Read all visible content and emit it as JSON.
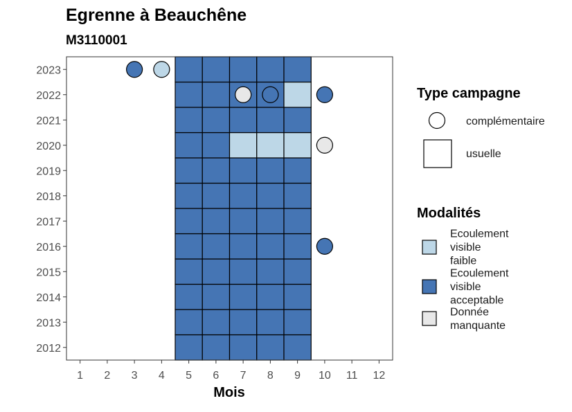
{
  "chart_data": {
    "type": "heatmap",
    "title": "Egrenne à Beauchêne",
    "subtitle": "M3110001",
    "xlabel": "Mois",
    "ylabel": "",
    "x_ticks": [
      "1",
      "2",
      "3",
      "4",
      "5",
      "6",
      "7",
      "8",
      "9",
      "10",
      "11",
      "12"
    ],
    "y_ticks": [
      "2012",
      "2013",
      "2014",
      "2015",
      "2016",
      "2017",
      "2018",
      "2019",
      "2020",
      "2021",
      "2022",
      "2023"
    ],
    "xlim": [
      0.5,
      12.5
    ],
    "ylim": [
      2011.5,
      2023.5
    ],
    "grid": false,
    "legend_position": "right",
    "colors": {
      "Ecoulement visible faible": "#bdd7e7",
      "Ecoulement visible acceptable": "#4575b4",
      "Donnée manquante": "#e8e8e8"
    },
    "legends": {
      "campaign_type": {
        "title": "Type campagne",
        "items": [
          {
            "label": "complémentaire",
            "shape": "circle"
          },
          {
            "label": "usuelle",
            "shape": "square"
          }
        ]
      },
      "modalites": {
        "title": "Modalités",
        "items": [
          {
            "key": "Ecoulement visible faible",
            "lines": [
              "Ecoulement",
              "visible",
              "faible"
            ]
          },
          {
            "key": "Ecoulement visible acceptable",
            "lines": [
              "Ecoulement",
              "visible",
              "acceptable"
            ]
          },
          {
            "key": "Donnée manquante",
            "lines": [
              "Donnée",
              "manquante"
            ]
          }
        ]
      }
    },
    "points": [
      {
        "x": 5,
        "y": 2012,
        "modalite": "Ecoulement visible acceptable",
        "type": "usuelle"
      },
      {
        "x": 6,
        "y": 2012,
        "modalite": "Ecoulement visible acceptable",
        "type": "usuelle"
      },
      {
        "x": 7,
        "y": 2012,
        "modalite": "Ecoulement visible acceptable",
        "type": "usuelle"
      },
      {
        "x": 8,
        "y": 2012,
        "modalite": "Ecoulement visible acceptable",
        "type": "usuelle"
      },
      {
        "x": 9,
        "y": 2012,
        "modalite": "Ecoulement visible acceptable",
        "type": "usuelle"
      },
      {
        "x": 5,
        "y": 2013,
        "modalite": "Ecoulement visible acceptable",
        "type": "usuelle"
      },
      {
        "x": 6,
        "y": 2013,
        "modalite": "Ecoulement visible acceptable",
        "type": "usuelle"
      },
      {
        "x": 7,
        "y": 2013,
        "modalite": "Ecoulement visible acceptable",
        "type": "usuelle"
      },
      {
        "x": 8,
        "y": 2013,
        "modalite": "Ecoulement visible acceptable",
        "type": "usuelle"
      },
      {
        "x": 9,
        "y": 2013,
        "modalite": "Ecoulement visible acceptable",
        "type": "usuelle"
      },
      {
        "x": 5,
        "y": 2014,
        "modalite": "Ecoulement visible acceptable",
        "type": "usuelle"
      },
      {
        "x": 6,
        "y": 2014,
        "modalite": "Ecoulement visible acceptable",
        "type": "usuelle"
      },
      {
        "x": 7,
        "y": 2014,
        "modalite": "Ecoulement visible acceptable",
        "type": "usuelle"
      },
      {
        "x": 8,
        "y": 2014,
        "modalite": "Ecoulement visible acceptable",
        "type": "usuelle"
      },
      {
        "x": 9,
        "y": 2014,
        "modalite": "Ecoulement visible acceptable",
        "type": "usuelle"
      },
      {
        "x": 5,
        "y": 2015,
        "modalite": "Ecoulement visible acceptable",
        "type": "usuelle"
      },
      {
        "x": 6,
        "y": 2015,
        "modalite": "Ecoulement visible acceptable",
        "type": "usuelle"
      },
      {
        "x": 7,
        "y": 2015,
        "modalite": "Ecoulement visible acceptable",
        "type": "usuelle"
      },
      {
        "x": 8,
        "y": 2015,
        "modalite": "Ecoulement visible acceptable",
        "type": "usuelle"
      },
      {
        "x": 9,
        "y": 2015,
        "modalite": "Ecoulement visible acceptable",
        "type": "usuelle"
      },
      {
        "x": 5,
        "y": 2016,
        "modalite": "Ecoulement visible acceptable",
        "type": "usuelle"
      },
      {
        "x": 6,
        "y": 2016,
        "modalite": "Ecoulement visible acceptable",
        "type": "usuelle"
      },
      {
        "x": 7,
        "y": 2016,
        "modalite": "Ecoulement visible acceptable",
        "type": "usuelle"
      },
      {
        "x": 8,
        "y": 2016,
        "modalite": "Ecoulement visible acceptable",
        "type": "usuelle"
      },
      {
        "x": 9,
        "y": 2016,
        "modalite": "Ecoulement visible acceptable",
        "type": "usuelle"
      },
      {
        "x": 10,
        "y": 2016,
        "modalite": "Ecoulement visible acceptable",
        "type": "complémentaire"
      },
      {
        "x": 5,
        "y": 2017,
        "modalite": "Ecoulement visible acceptable",
        "type": "usuelle"
      },
      {
        "x": 6,
        "y": 2017,
        "modalite": "Ecoulement visible acceptable",
        "type": "usuelle"
      },
      {
        "x": 7,
        "y": 2017,
        "modalite": "Ecoulement visible acceptable",
        "type": "usuelle"
      },
      {
        "x": 8,
        "y": 2017,
        "modalite": "Ecoulement visible acceptable",
        "type": "usuelle"
      },
      {
        "x": 9,
        "y": 2017,
        "modalite": "Ecoulement visible acceptable",
        "type": "usuelle"
      },
      {
        "x": 5,
        "y": 2018,
        "modalite": "Ecoulement visible acceptable",
        "type": "usuelle"
      },
      {
        "x": 6,
        "y": 2018,
        "modalite": "Ecoulement visible acceptable",
        "type": "usuelle"
      },
      {
        "x": 7,
        "y": 2018,
        "modalite": "Ecoulement visible acceptable",
        "type": "usuelle"
      },
      {
        "x": 8,
        "y": 2018,
        "modalite": "Ecoulement visible acceptable",
        "type": "usuelle"
      },
      {
        "x": 9,
        "y": 2018,
        "modalite": "Ecoulement visible acceptable",
        "type": "usuelle"
      },
      {
        "x": 5,
        "y": 2019,
        "modalite": "Ecoulement visible acceptable",
        "type": "usuelle"
      },
      {
        "x": 6,
        "y": 2019,
        "modalite": "Ecoulement visible acceptable",
        "type": "usuelle"
      },
      {
        "x": 7,
        "y": 2019,
        "modalite": "Ecoulement visible acceptable",
        "type": "usuelle"
      },
      {
        "x": 8,
        "y": 2019,
        "modalite": "Ecoulement visible acceptable",
        "type": "usuelle"
      },
      {
        "x": 9,
        "y": 2019,
        "modalite": "Ecoulement visible acceptable",
        "type": "usuelle"
      },
      {
        "x": 5,
        "y": 2020,
        "modalite": "Ecoulement visible acceptable",
        "type": "usuelle"
      },
      {
        "x": 6,
        "y": 2020,
        "modalite": "Ecoulement visible acceptable",
        "type": "usuelle"
      },
      {
        "x": 7,
        "y": 2020,
        "modalite": "Ecoulement visible faible",
        "type": "usuelle"
      },
      {
        "x": 8,
        "y": 2020,
        "modalite": "Ecoulement visible faible",
        "type": "usuelle"
      },
      {
        "x": 9,
        "y": 2020,
        "modalite": "Ecoulement visible faible",
        "type": "usuelle"
      },
      {
        "x": 10,
        "y": 2020,
        "modalite": "Donnée manquante",
        "type": "complémentaire"
      },
      {
        "x": 5,
        "y": 2021,
        "modalite": "Ecoulement visible acceptable",
        "type": "usuelle"
      },
      {
        "x": 6,
        "y": 2021,
        "modalite": "Ecoulement visible acceptable",
        "type": "usuelle"
      },
      {
        "x": 7,
        "y": 2021,
        "modalite": "Ecoulement visible acceptable",
        "type": "usuelle"
      },
      {
        "x": 8,
        "y": 2021,
        "modalite": "Ecoulement visible acceptable",
        "type": "usuelle"
      },
      {
        "x": 9,
        "y": 2021,
        "modalite": "Ecoulement visible acceptable",
        "type": "usuelle"
      },
      {
        "x": 5,
        "y": 2022,
        "modalite": "Ecoulement visible acceptable",
        "type": "usuelle"
      },
      {
        "x": 6,
        "y": 2022,
        "modalite": "Ecoulement visible acceptable",
        "type": "usuelle"
      },
      {
        "x": 7,
        "y": 2022,
        "modalite": "Ecoulement visible acceptable",
        "type": "usuelle"
      },
      {
        "x": 8,
        "y": 2022,
        "modalite": "Ecoulement visible acceptable",
        "type": "usuelle"
      },
      {
        "x": 9,
        "y": 2022,
        "modalite": "Ecoulement visible faible",
        "type": "usuelle"
      },
      {
        "x": 7,
        "y": 2022,
        "modalite": "Donnée manquante",
        "type": "complémentaire"
      },
      {
        "x": 8,
        "y": 2022,
        "modalite": "Ecoulement visible acceptable",
        "type": "complémentaire"
      },
      {
        "x": 10,
        "y": 2022,
        "modalite": "Ecoulement visible acceptable",
        "type": "complémentaire"
      },
      {
        "x": 5,
        "y": 2023,
        "modalite": "Ecoulement visible acceptable",
        "type": "usuelle"
      },
      {
        "x": 6,
        "y": 2023,
        "modalite": "Ecoulement visible acceptable",
        "type": "usuelle"
      },
      {
        "x": 7,
        "y": 2023,
        "modalite": "Ecoulement visible acceptable",
        "type": "usuelle"
      },
      {
        "x": 8,
        "y": 2023,
        "modalite": "Ecoulement visible acceptable",
        "type": "usuelle"
      },
      {
        "x": 9,
        "y": 2023,
        "modalite": "Ecoulement visible acceptable",
        "type": "usuelle"
      },
      {
        "x": 3,
        "y": 2023,
        "modalite": "Ecoulement visible acceptable",
        "type": "complémentaire"
      },
      {
        "x": 4,
        "y": 2023,
        "modalite": "Ecoulement visible faible",
        "type": "complémentaire"
      }
    ]
  }
}
